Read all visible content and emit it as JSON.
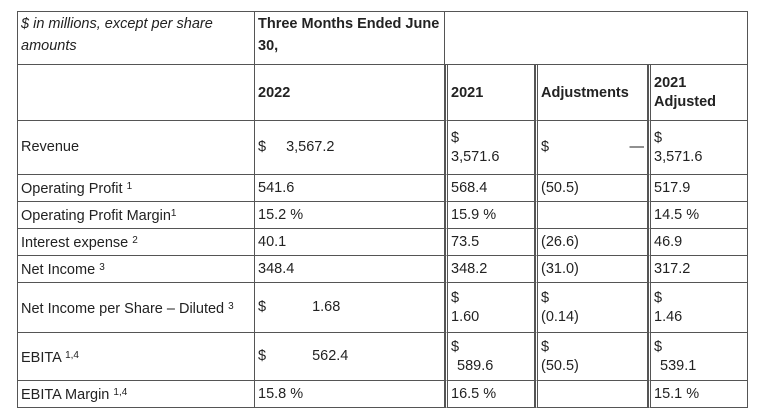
{
  "header": {
    "units_label": "$ in millions, except per share amounts",
    "period_label": "Three Months Ended June 30,",
    "col_2022": "2022",
    "col_2021": "2021",
    "col_adjustments": "Adjustments",
    "col_2021_adjusted_line1": "2021",
    "col_2021_adjusted_line2": "Adjusted"
  },
  "rows": {
    "revenue": {
      "label": "Revenue",
      "sup": "",
      "v2022_sym": "$",
      "v2022": "3,567.2",
      "v2021_sym": "$",
      "v2021": "3,571.6",
      "adj_sym": "$",
      "adj": "—",
      "adjusted_sym": "$",
      "adjusted": "3,571.6"
    },
    "operating_profit": {
      "label": "Operating Profit",
      "sup": "1",
      "v2022": "541.6",
      "v2021": "568.4",
      "adj": "(50.5)",
      "adjusted": "517.9"
    },
    "operating_margin": {
      "label": "Operating Profit Margin",
      "sup": "1",
      "v2022": "15.2 %",
      "v2021": "15.9 %",
      "adj": "",
      "adjusted": "14.5 %"
    },
    "interest_expense": {
      "label": "Interest expense",
      "sup": "2",
      "v2022": "40.1",
      "v2021": "73.5",
      "adj": "(26.6)",
      "adjusted": "46.9"
    },
    "net_income": {
      "label": "Net Income",
      "sup": "3",
      "v2022": "348.4",
      "v2021": "348.2",
      "adj": "(31.0)",
      "adjusted": "317.2"
    },
    "eps_diluted": {
      "label": "Net Income per Share – Diluted",
      "sup": "3",
      "v2022_sym": "$",
      "v2022": "1.68",
      "v2021_sym": "$",
      "v2021": "1.60",
      "adj_sym": "$",
      "adj": "(0.14)",
      "adjusted_sym": "$",
      "adjusted": "1.46"
    },
    "ebita": {
      "label": "EBITA",
      "sup": "1,4",
      "v2022_sym": "$",
      "v2022": "562.4",
      "v2021_sym": "$",
      "v2021": "589.6",
      "adj_sym": "$",
      "adj": "(50.5)",
      "adjusted_sym": "$",
      "adjusted": "539.1"
    },
    "ebita_margin": {
      "label": "EBITA Margin",
      "sup": "1,4",
      "v2022": "15.8 %",
      "v2021": "16.5 %",
      "adj": "",
      "adjusted": "15.1 %"
    }
  }
}
